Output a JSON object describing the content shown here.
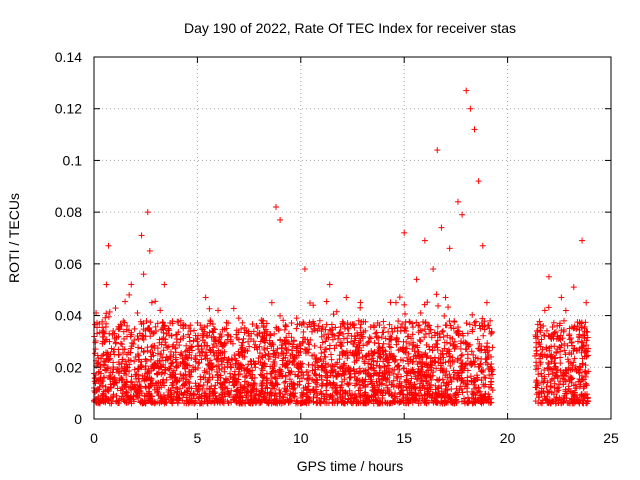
{
  "chart_data": {
    "type": "scatter",
    "title": "Day 190 of 2022, Rate Of TEC Index for receiver stas",
    "xlabel": "GPS time / hours",
    "ylabel": "ROTI / TECUs",
    "xlim": [
      0,
      25
    ],
    "ylim": [
      0,
      0.14
    ],
    "x_ticks": [
      0,
      5,
      10,
      15,
      20,
      25
    ],
    "x_tick_labels": [
      "0",
      "5",
      "10",
      "15",
      "20",
      "25"
    ],
    "y_ticks": [
      0,
      0.02,
      0.04,
      0.06,
      0.08,
      0.1,
      0.12,
      0.14
    ],
    "y_tick_labels": [
      "0",
      "0.02",
      "0.04",
      "0.06",
      "0.08",
      "0.1",
      "0.12",
      "0.14"
    ],
    "grid": true,
    "marker": "+",
    "color": "#ff0000",
    "series": [
      {
        "x": [
          0.0,
          0.1,
          0.2,
          0.3,
          0.4,
          0.5,
          0.6,
          0.7,
          0.8,
          0.9,
          1.0,
          1.1,
          1.2,
          1.3,
          1.4,
          1.5,
          1.6,
          1.7,
          1.8,
          1.9,
          2.0,
          2.1,
          2.2,
          2.3,
          2.4,
          2.5,
          2.6,
          2.7,
          2.8,
          2.9,
          3.0,
          3.1,
          3.2,
          3.3,
          3.4,
          3.5,
          3.6,
          3.7,
          3.8,
          3.9,
          4.0,
          4.2,
          4.4,
          4.6,
          4.8,
          5.0,
          5.2,
          5.4,
          5.6,
          5.8,
          6.0,
          6.2,
          6.4,
          6.6,
          6.8,
          7.0,
          7.2,
          7.4,
          7.6,
          7.8,
          8.0,
          8.2,
          8.4,
          8.6,
          8.8,
          9.0,
          9.2,
          9.4,
          9.6,
          9.8,
          10.0,
          10.2,
          10.4,
          10.6,
          10.8,
          11.0,
          11.2,
          11.4,
          11.6,
          11.8,
          12.0,
          12.2,
          12.4,
          12.6,
          12.8,
          13.0,
          13.2,
          13.4,
          13.6,
          13.8,
          14.0,
          14.2,
          14.4,
          14.6,
          14.8,
          15.0,
          15.2,
          15.4,
          15.6,
          15.8,
          16.0,
          16.2,
          16.4,
          16.6,
          16.8,
          17.0,
          17.2,
          17.4,
          17.6,
          17.8,
          18.0,
          18.2,
          18.4,
          18.6,
          18.8,
          19.0,
          19.2,
          21.4,
          21.6,
          21.8,
          22.0,
          22.2,
          22.4,
          22.6,
          22.8,
          23.0,
          23.2,
          23.4,
          23.6,
          23.8
        ],
        "y": [
          0.012,
          0.041,
          0.015,
          0.021,
          0.009,
          0.033,
          0.052,
          0.067,
          0.025,
          0.018,
          0.031,
          0.014,
          0.022,
          0.011,
          0.027,
          0.019,
          0.036,
          0.048,
          0.052,
          0.029,
          0.017,
          0.041,
          0.012,
          0.071,
          0.056,
          0.032,
          0.08,
          0.065,
          0.045,
          0.02,
          0.034,
          0.014,
          0.042,
          0.018,
          0.052,
          0.024,
          0.035,
          0.011,
          0.028,
          0.016,
          0.022,
          0.038,
          0.013,
          0.027,
          0.019,
          0.031,
          0.023,
          0.047,
          0.016,
          0.029,
          0.042,
          0.012,
          0.035,
          0.021,
          0.017,
          0.039,
          0.024,
          0.014,
          0.033,
          0.02,
          0.028,
          0.036,
          0.015,
          0.045,
          0.082,
          0.077,
          0.03,
          0.018,
          0.025,
          0.039,
          0.021,
          0.058,
          0.027,
          0.044,
          0.015,
          0.034,
          0.024,
          0.052,
          0.019,
          0.031,
          0.026,
          0.047,
          0.016,
          0.022,
          0.038,
          0.014,
          0.029,
          0.021,
          0.033,
          0.018,
          0.025,
          0.012,
          0.035,
          0.045,
          0.027,
          0.072,
          0.032,
          0.022,
          0.054,
          0.041,
          0.069,
          0.028,
          0.058,
          0.104,
          0.074,
          0.047,
          0.066,
          0.035,
          0.084,
          0.079,
          0.127,
          0.12,
          0.112,
          0.092,
          0.067,
          0.045,
          0.024,
          0.015,
          0.028,
          0.042,
          0.055,
          0.032,
          0.019,
          0.047,
          0.025,
          0.035,
          0.051,
          0.03,
          0.069,
          0.045
        ]
      }
    ]
  }
}
